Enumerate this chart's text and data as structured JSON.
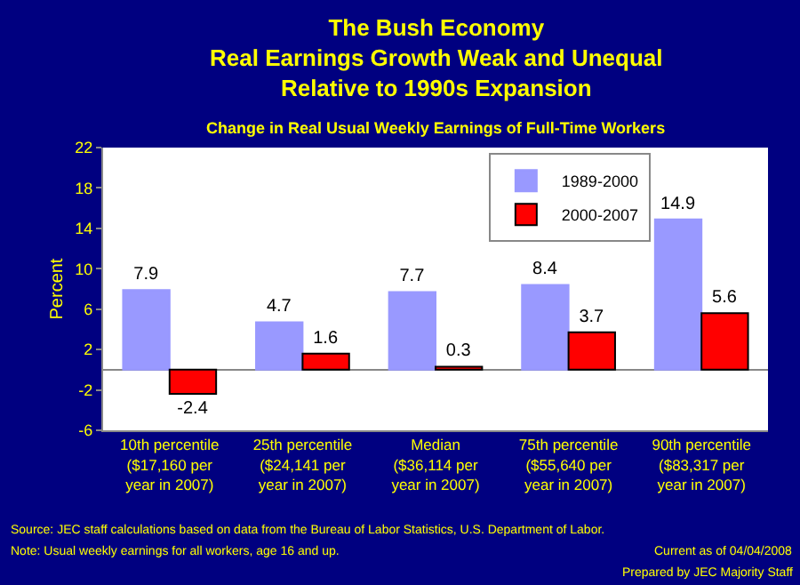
{
  "chart_data": {
    "type": "bar",
    "title": "The Bush Economy\nReal Earnings Growth Weak and Unequal\nRelative to 1990s Expansion",
    "subtitle": "Change in Real Usual Weekly Earnings of Full-Time Workers",
    "ylabel": "Percent",
    "categories": [
      "10th percentile\n($17,160 per\nyear in 2007)",
      "25th percentile\n($24,141 per\nyear in 2007)",
      "Median\n($36,114 per\nyear in 2007)",
      "75th percentile\n($55,640 per\nyear in 2007)",
      "90th percentile\n($83,317 per\nyear in 2007)"
    ],
    "series": [
      {
        "name": "1989-2000",
        "color": "#9999ff",
        "values": [
          7.9,
          4.7,
          7.7,
          8.4,
          14.9
        ]
      },
      {
        "name": "2000-2007",
        "color": "#ff0000",
        "values": [
          -2.4,
          1.6,
          0.3,
          3.7,
          5.6
        ]
      }
    ],
    "ylim": [
      -6,
      22
    ],
    "yticks": [
      -6,
      -2,
      2,
      6,
      10,
      14,
      18,
      22
    ],
    "data_labels": true,
    "grid": false,
    "legend": "top",
    "annotations": [
      "Source: JEC staff calculations based on data from the Bureau of Labor Statistics, U.S. Department of Labor.",
      "Note: Usual weekly earnings for all workers, age 16 and up.",
      "Current as of 04/04/2008",
      "Prepared by JEC Majority Staff"
    ]
  }
}
